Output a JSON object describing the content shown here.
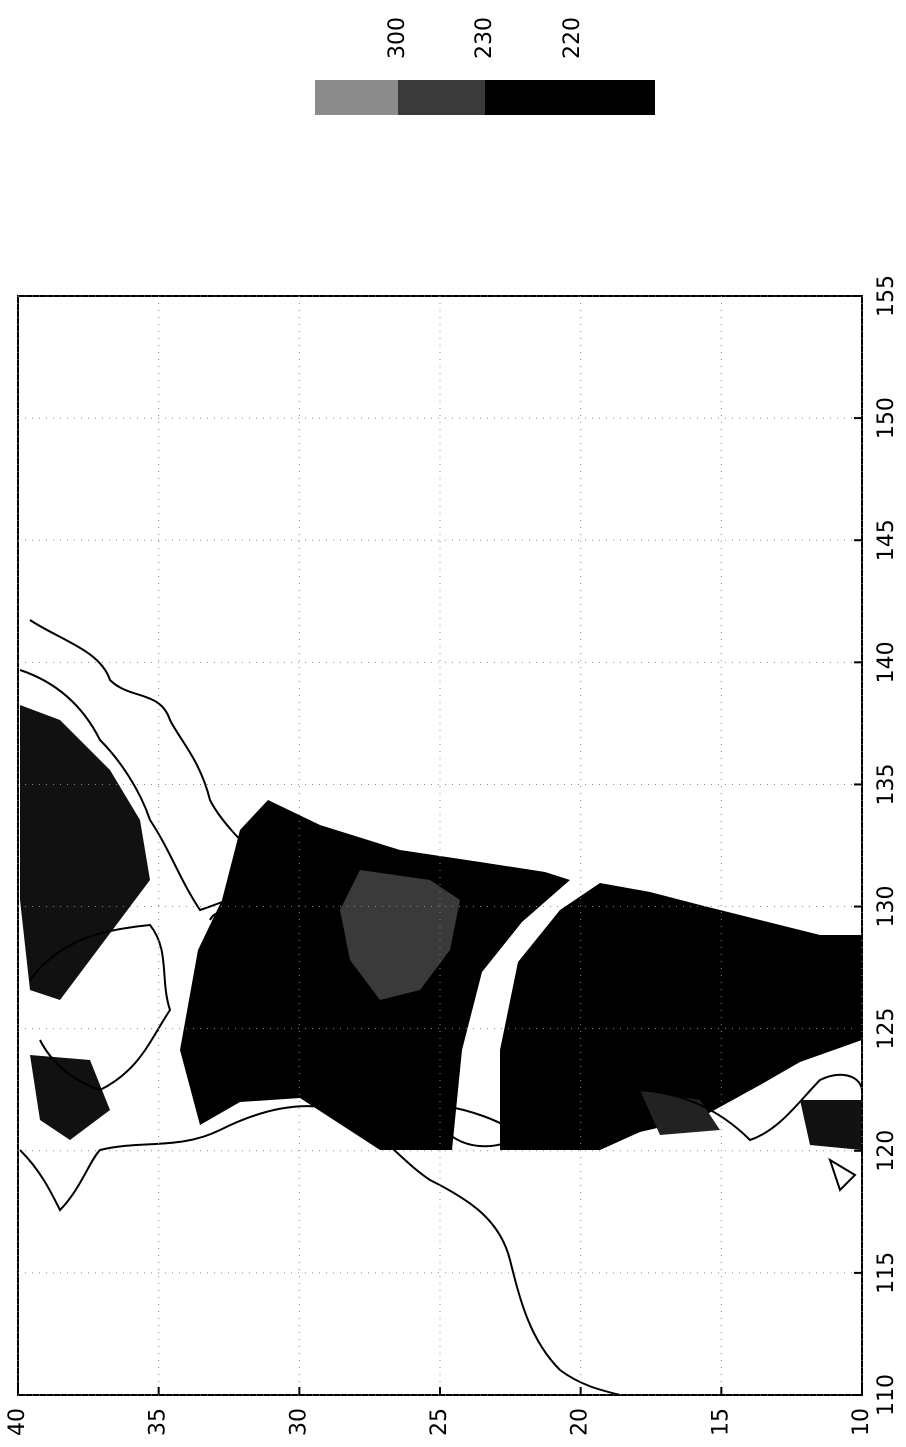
{
  "chart_data": {
    "type": "map",
    "xlim": [
      40,
      10
    ],
    "xticks": [
      40,
      35,
      30,
      25,
      20,
      15,
      10
    ],
    "ylim": [
      110,
      155
    ],
    "yticks": [
      110,
      115,
      120,
      125,
      130,
      135,
      140,
      145,
      150,
      155
    ],
    "grid": true,
    "colorbar": [
      {
        "value": 300,
        "color": "#8c8c8c"
      },
      {
        "value": 230,
        "color": "#3a3a3a"
      },
      {
        "value": 220,
        "color": "#000000"
      }
    ]
  }
}
